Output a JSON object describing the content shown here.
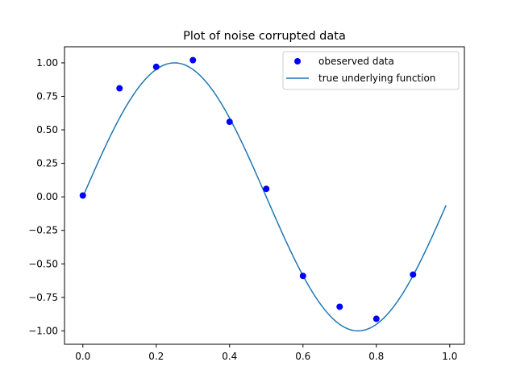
{
  "chart_data": {
    "type": "scatter",
    "title": "Plot of noise corrupted data",
    "xlabel": "",
    "ylabel": "",
    "xlim": [
      -0.05,
      1.04
    ],
    "ylim": [
      -1.1,
      1.12
    ],
    "x_ticks": [
      0.0,
      0.2,
      0.4,
      0.6,
      0.8,
      1.0
    ],
    "x_tick_labels": [
      "0.0",
      "0.2",
      "0.4",
      "0.6",
      "0.8",
      "1.0"
    ],
    "y_ticks": [
      1.0,
      0.75,
      0.5,
      0.25,
      0.0,
      -0.25,
      -0.5,
      -0.75,
      -1.0
    ],
    "y_tick_labels": [
      "1.00",
      "0.75",
      "0.50",
      "0.25",
      "0.00",
      "−0.25",
      "−0.50",
      "−0.75",
      "−1.00"
    ],
    "grid": false,
    "legend_position": "top-right",
    "series": [
      {
        "name": "obeserved data",
        "kind": "scatter",
        "color": "#0000ff",
        "x": [
          0.0,
          0.1,
          0.2,
          0.3,
          0.4,
          0.5,
          0.6,
          0.7,
          0.8,
          0.9
        ],
        "y": [
          0.01,
          0.81,
          0.97,
          1.02,
          0.56,
          0.06,
          -0.59,
          -0.82,
          -0.91,
          -0.58
        ]
      },
      {
        "name": "true underlying function",
        "kind": "line",
        "color": "#1f77b4",
        "function": "sin(2*pi*x)",
        "x_range": [
          0.0,
          0.99
        ]
      }
    ]
  }
}
